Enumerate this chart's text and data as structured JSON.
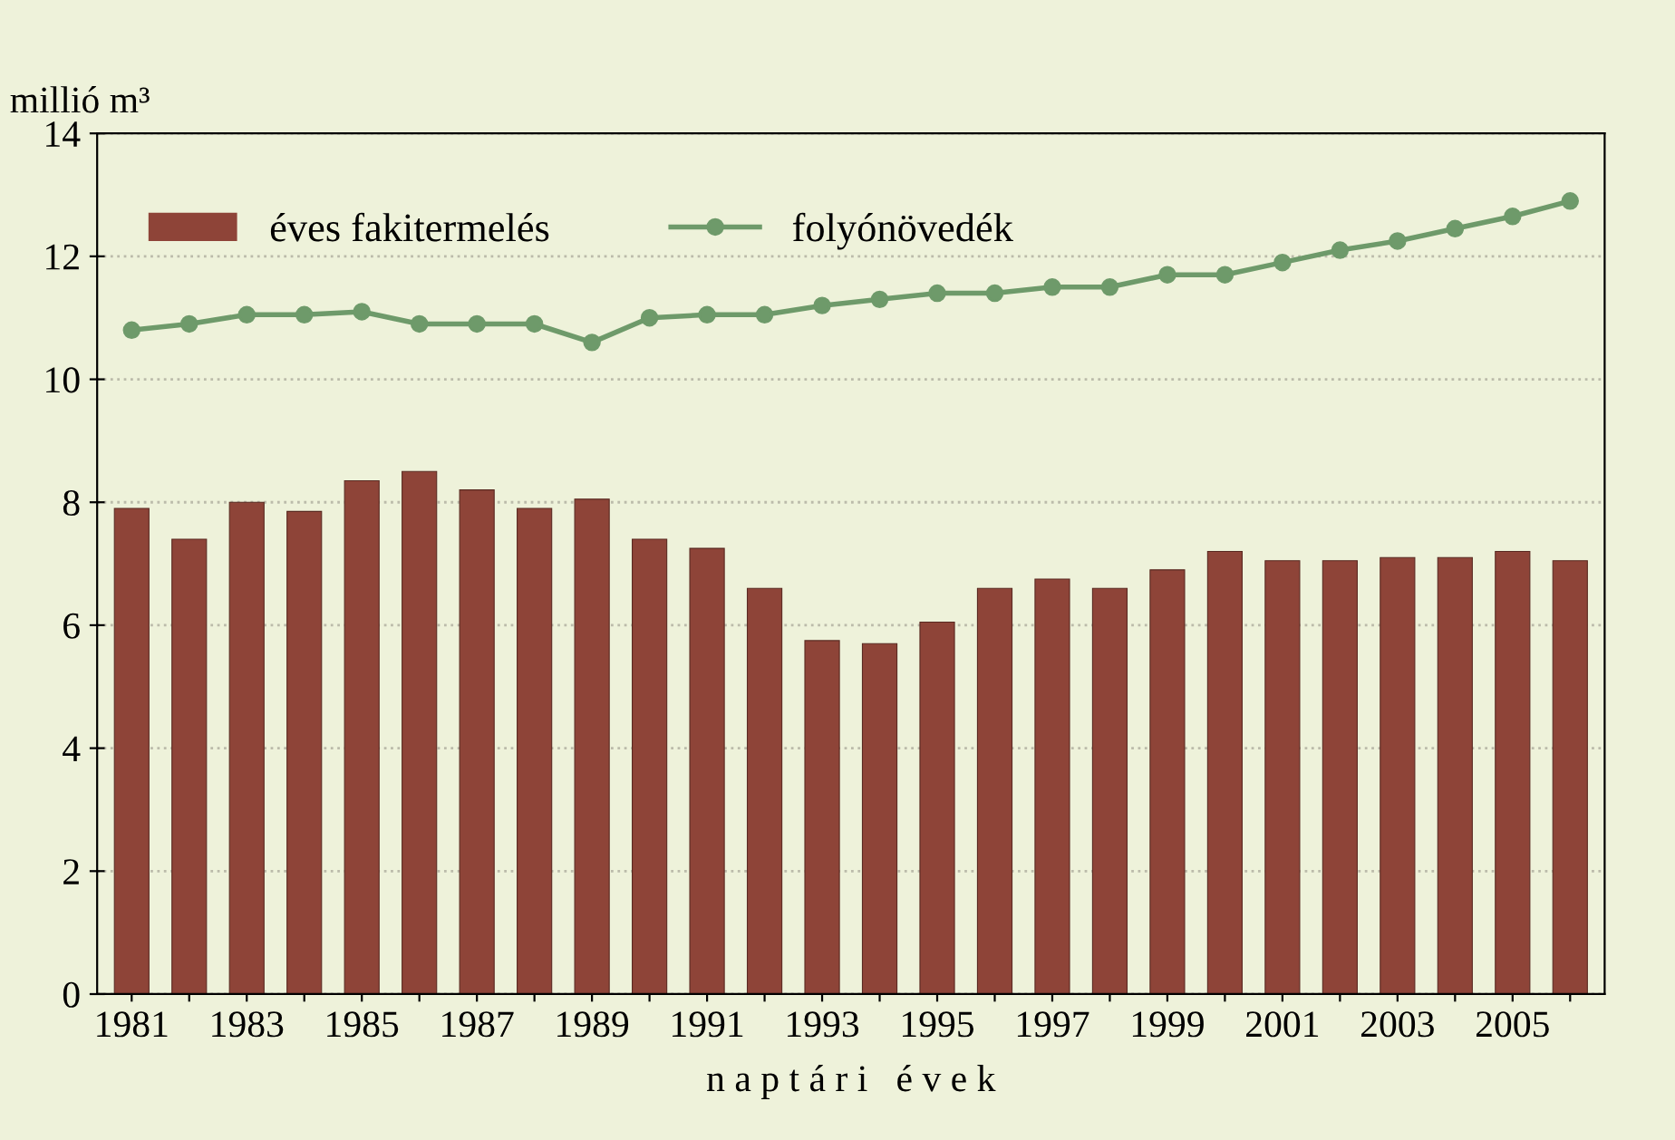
{
  "chart_data": {
    "type": "bar",
    "ylabel": "millió m³",
    "xlabel": "n a p t á r i   é v e k",
    "categories": [
      "1981",
      null,
      "1983",
      null,
      "1985",
      null,
      "1987",
      null,
      "1989",
      null,
      "1991",
      null,
      "1993",
      null,
      "1995",
      null,
      "1997",
      null,
      "1999",
      null,
      "2001",
      null,
      "2003",
      null,
      "2005",
      null
    ],
    "series": [
      {
        "name": "éves fakitermelés",
        "color": "#8e4438",
        "values": [
          7.9,
          7.4,
          8.0,
          7.85,
          8.35,
          8.5,
          8.2,
          7.9,
          8.05,
          7.4,
          7.25,
          6.6,
          5.75,
          5.7,
          6.05,
          6.6,
          6.75,
          6.6,
          6.9,
          7.2,
          7.05,
          7.05,
          7.1,
          7.1,
          7.2,
          7.05
        ]
      },
      {
        "name": "folyónövedék",
        "type": "line",
        "color": "#6e9a6a",
        "marker": "circle",
        "values": [
          10.8,
          10.9,
          11.05,
          11.05,
          11.1,
          10.9,
          10.9,
          10.9,
          10.6,
          11.0,
          11.05,
          11.05,
          11.2,
          11.3,
          11.4,
          11.4,
          11.5,
          11.5,
          11.7,
          11.7,
          11.9,
          12.1,
          12.25,
          12.45,
          12.65,
          12.9
        ]
      }
    ],
    "ylim": [
      0,
      14
    ],
    "yticks": [
      0,
      2,
      4,
      6,
      8,
      10,
      12,
      14
    ],
    "grid": "y",
    "legend": "top left"
  }
}
